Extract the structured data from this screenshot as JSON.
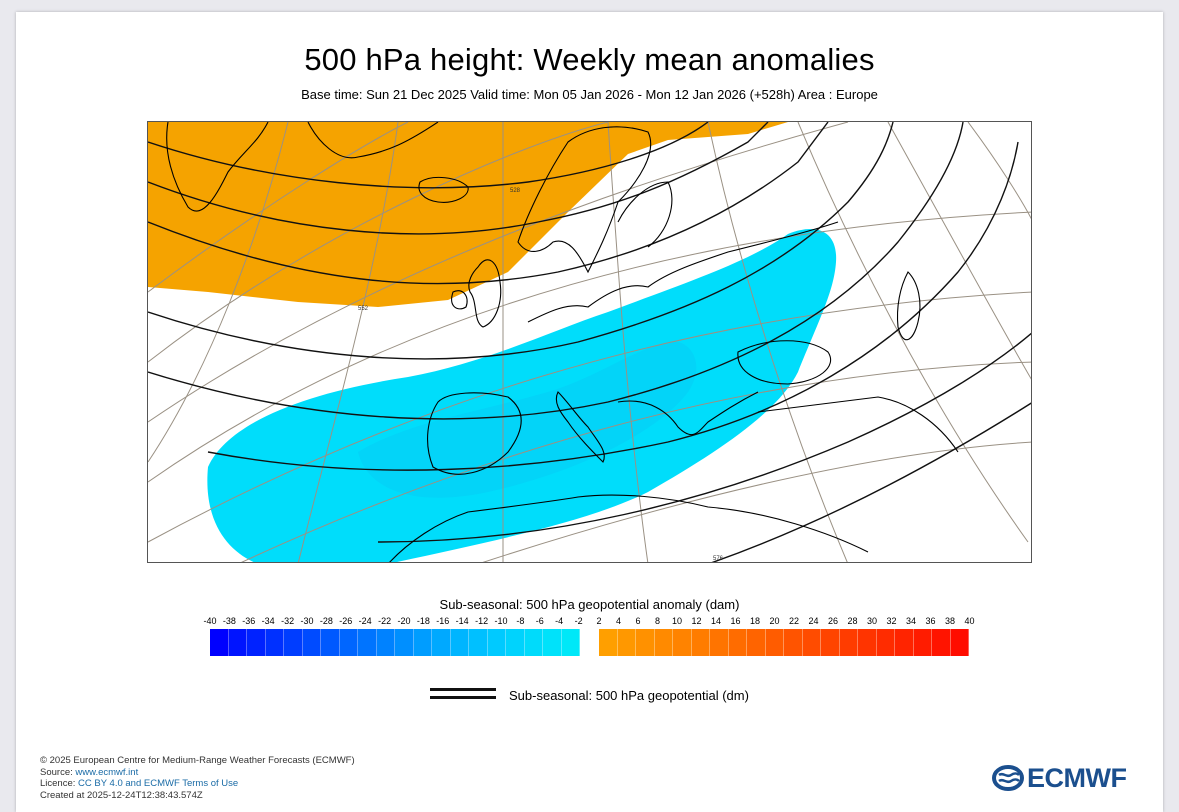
{
  "header": {
    "title": "500 hPa height: Weekly mean anomalies",
    "subtitle": "Base time: Sun 21 Dec 2025 Valid time: Mon 05 Jan 2026 - Mon 12 Jan 2026 (+528h) Area : Europe"
  },
  "map": {
    "area": "Europe",
    "contour_labels": [
      "552",
      "528",
      "576"
    ],
    "anomaly_regions": [
      {
        "sign": "positive",
        "color": "#f5a300",
        "location": "North Atlantic, Greenland to Norway"
      },
      {
        "sign": "negative",
        "color": "#00ddfb",
        "location": "Iberia, Central and Southern Europe to Black Sea"
      }
    ]
  },
  "legend": {
    "title": "Sub-seasonal: 500 hPa geopotential anomaly (dam)",
    "negative_ticks": [
      "-40",
      "-38",
      "-36",
      "-34",
      "-32",
      "-30",
      "-28",
      "-26",
      "-24",
      "-22",
      "-20",
      "-18",
      "-16",
      "-14",
      "-12",
      "-10",
      "-8",
      "-6",
      "-4",
      "-2"
    ],
    "positive_ticks": [
      "2",
      "4",
      "6",
      "8",
      "10",
      "12",
      "14",
      "16",
      "18",
      "20",
      "22",
      "24",
      "26",
      "28",
      "30",
      "32",
      "34",
      "36",
      "38",
      "40"
    ],
    "negative_colors": [
      "#0000ff",
      "#0014ff",
      "#0022ff",
      "#0030ff",
      "#003dff",
      "#004bff",
      "#0059ff",
      "#0066ff",
      "#0074ff",
      "#0082ff",
      "#008fff",
      "#009dff",
      "#00a9ff",
      "#00b5ff",
      "#00c0ff",
      "#00caff",
      "#00d3fd",
      "#00dbfb",
      "#00e2fa",
      "#00e8f8"
    ],
    "positive_colors": [
      "#ff9f00",
      "#ff9800",
      "#ff9100",
      "#ff8a00",
      "#ff8300",
      "#ff7c00",
      "#ff7400",
      "#ff6c00",
      "#ff6400",
      "#ff5c00",
      "#ff5400",
      "#ff4c00",
      "#ff4400",
      "#ff3c00",
      "#ff3400",
      "#ff2c00",
      "#ff2400",
      "#ff1c00",
      "#ff1400",
      "#ff0c00"
    ],
    "line_label": "Sub-seasonal: 500 hPa geopotential (dm)"
  },
  "footer": {
    "copyright": "© 2025 European Centre for Medium-Range Weather Forecasts (ECMWF)",
    "source_prefix": "Source: ",
    "source_link": "www.ecmwf.int",
    "licence_prefix": "Licence: ",
    "licence_link": "CC BY 4.0 and ECMWF Terms of Use",
    "created": "Created at 2025-12-24T12:38:43.574Z"
  },
  "logo": {
    "text": "ECMWF",
    "color": "#1b4f8e"
  }
}
